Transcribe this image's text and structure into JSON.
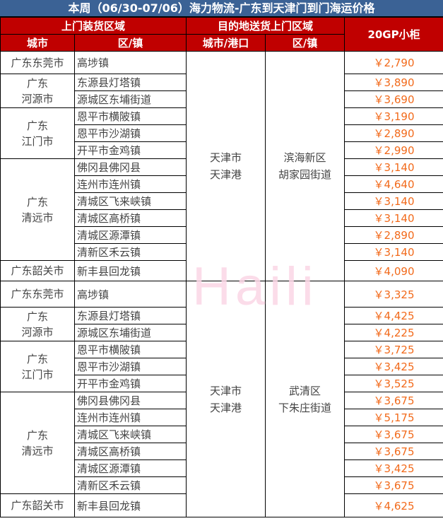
{
  "title": "本周（06/30-07/06）海力物流-广东到天津门到门海运价格",
  "headers": {
    "pickup": "上门装货区域",
    "delivery": "目的地送货上门区域",
    "price": "20GP小柜",
    "city": "城市",
    "town": "区/镇",
    "dest_city": "城市/港口",
    "dest_town": "区/镇"
  },
  "watermark": "Haili",
  "groups": [
    {
      "dest_city": "天津市\n天津港",
      "dest_town": "滨海新区\n胡家园街道",
      "cities": [
        {
          "city": "广东东莞市",
          "rows": [
            {
              "town": "高埗镇",
              "price": "￥2,790"
            }
          ]
        },
        {
          "city": "广东\n河源市",
          "rows": [
            {
              "town": "东源县灯塔镇",
              "price": "￥3,890"
            },
            {
              "town": "源城区东埔街道",
              "price": "￥3,690"
            }
          ]
        },
        {
          "city": "广东\n江门市",
          "rows": [
            {
              "town": "恩平市横陂镇",
              "price": "￥3,190"
            },
            {
              "town": "恩平市沙湖镇",
              "price": "￥2,890"
            },
            {
              "town": "开平市金鸡镇",
              "price": "￥2,990"
            }
          ]
        },
        {
          "city": "广东\n清远市",
          "rows": [
            {
              "town": "佛冈县佛冈县",
              "price": "￥3,140"
            },
            {
              "town": "连州市连州镇",
              "price": "￥4,640"
            },
            {
              "town": "清城区飞来峡镇",
              "price": "￥3,140"
            },
            {
              "town": "清城区高桥镇",
              "price": "￥3,140"
            },
            {
              "town": "清城区源潭镇",
              "price": "￥2,890"
            },
            {
              "town": "清新区禾云镇",
              "price": "￥3,140"
            }
          ]
        },
        {
          "city": "广东韶关市",
          "rows": [
            {
              "town": "新丰县回龙镇",
              "price": "￥4,090"
            }
          ]
        }
      ]
    },
    {
      "dest_city": "天津市\n天津港",
      "dest_town": "武清区\n下朱庄街道",
      "cities": [
        {
          "city": "广东东莞市",
          "rows": [
            {
              "town": "高埗镇",
              "price": "￥3,325"
            }
          ]
        },
        {
          "city": "广东\n河源市",
          "rows": [
            {
              "town": "东源县灯塔镇",
              "price": "￥4,425"
            },
            {
              "town": "源城区东埔街道",
              "price": "￥4,225"
            }
          ]
        },
        {
          "city": "广东\n江门市",
          "rows": [
            {
              "town": "恩平市横陂镇",
              "price": "￥3,725"
            },
            {
              "town": "恩平市沙湖镇",
              "price": "￥3,425"
            },
            {
              "town": "开平市金鸡镇",
              "price": "￥3,525"
            }
          ]
        },
        {
          "city": "广东\n清远市",
          "rows": [
            {
              "town": "佛冈县佛冈县",
              "price": "￥3,675"
            },
            {
              "town": "连州市连州镇",
              "price": "￥5,175"
            },
            {
              "town": "清城区飞来峡镇",
              "price": "￥3,675"
            },
            {
              "town": "清城区高桥镇",
              "price": "￥3,675"
            },
            {
              "town": "清城区源潭镇",
              "price": "￥3,425"
            },
            {
              "town": "清新区禾云镇",
              "price": "￥3,675"
            }
          ]
        },
        {
          "city": "广东韶关市",
          "rows": [
            {
              "town": "新丰县回龙镇",
              "price": "￥4,625"
            }
          ]
        }
      ]
    }
  ]
}
